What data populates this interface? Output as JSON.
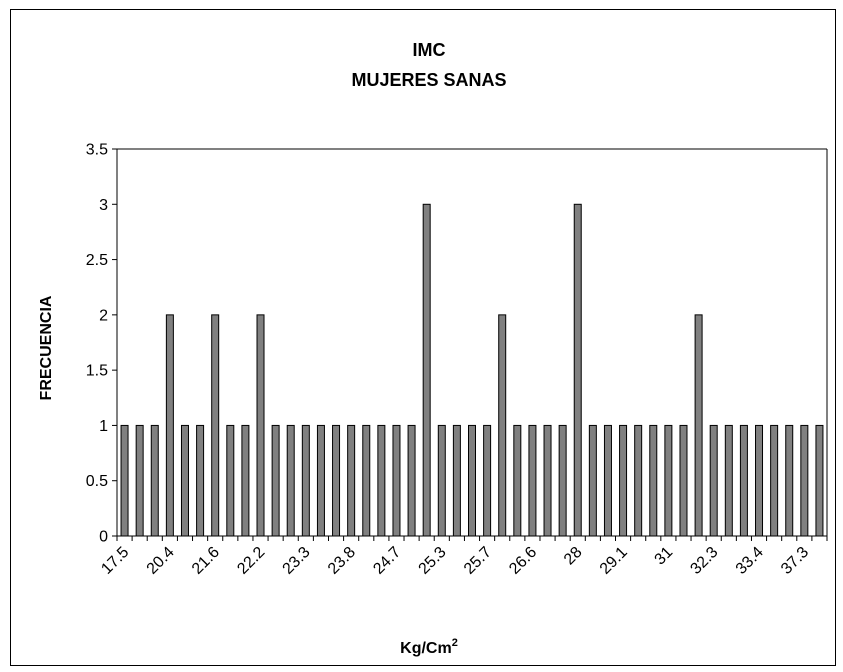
{
  "chart_data": {
    "type": "bar",
    "title": "IMC",
    "subtitle": "MUJERES SANAS",
    "xlabel": "Kg/Cm",
    "xlabel_superscript": "2",
    "ylabel": "FRECUENCIA",
    "ylim": [
      0,
      3.5
    ],
    "yticks": [
      "0",
      "0.5",
      "1",
      "1.5",
      "2",
      "2.5",
      "3",
      "3.5"
    ],
    "grid": false,
    "legend": "none",
    "x_tick_labels": [
      "17.5",
      "20.4",
      "21.6",
      "22.2",
      "23.3",
      "23.8",
      "24.7",
      "25.3",
      "25.7",
      "26.6",
      "28",
      "29.1",
      "31",
      "32.3",
      "33.4",
      "37.3"
    ],
    "values": [
      1,
      1,
      1,
      2,
      1,
      1,
      2,
      1,
      1,
      2,
      1,
      1,
      1,
      1,
      1,
      1,
      1,
      1,
      1,
      1,
      3,
      1,
      1,
      1,
      1,
      2,
      1,
      1,
      1,
      1,
      3,
      1,
      1,
      1,
      1,
      1,
      1,
      1,
      2,
      1,
      1,
      1,
      1,
      1,
      1,
      1,
      1
    ],
    "bar_color": "#808080"
  }
}
